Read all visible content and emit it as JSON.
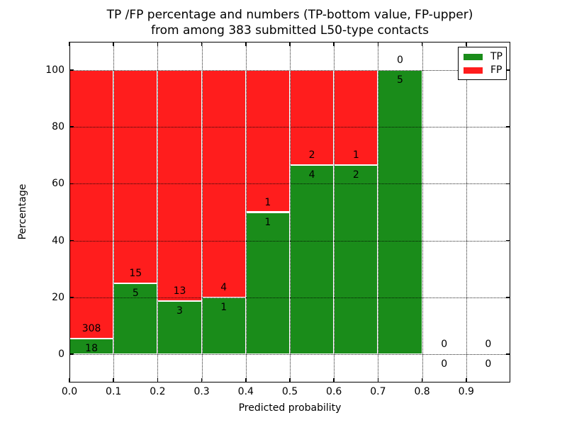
{
  "chart_data": {
    "type": "bar",
    "stacked": true,
    "title_lines": [
      "TP /FP percentage and numbers (TP-bottom value, FP-upper)",
      "from among 383 submitted L50-type contacts"
    ],
    "total_submitted_contacts": 383,
    "xlabel": "Predicted probability",
    "ylabel": "Percentage",
    "xlim": [
      0.0,
      1.0
    ],
    "ylim": [
      -10,
      110
    ],
    "grid": true,
    "xticks": [
      {
        "value": 0.0,
        "label": "0.0"
      },
      {
        "value": 0.1,
        "label": "0.1"
      },
      {
        "value": 0.2,
        "label": "0.2"
      },
      {
        "value": 0.3,
        "label": "0.3"
      },
      {
        "value": 0.4,
        "label": "0.4"
      },
      {
        "value": 0.5,
        "label": "0.5"
      },
      {
        "value": 0.6,
        "label": "0.6"
      },
      {
        "value": 0.7,
        "label": "0.7"
      },
      {
        "value": 0.8,
        "label": "0.8"
      },
      {
        "value": 0.9,
        "label": "0.9"
      }
    ],
    "yticks": [
      {
        "value": 0,
        "label": "0"
      },
      {
        "value": 20,
        "label": "20"
      },
      {
        "value": 40,
        "label": "40"
      },
      {
        "value": 60,
        "label": "60"
      },
      {
        "value": 80,
        "label": "80"
      },
      {
        "value": 100,
        "label": "100"
      }
    ],
    "bins": [
      {
        "x_start": 0.0,
        "x_end": 0.1,
        "tp": 18,
        "fp": 308
      },
      {
        "x_start": 0.1,
        "x_end": 0.2,
        "tp": 5,
        "fp": 15
      },
      {
        "x_start": 0.2,
        "x_end": 0.3,
        "tp": 3,
        "fp": 13
      },
      {
        "x_start": 0.3,
        "x_end": 0.4,
        "tp": 1,
        "fp": 4
      },
      {
        "x_start": 0.4,
        "x_end": 0.5,
        "tp": 1,
        "fp": 1
      },
      {
        "x_start": 0.5,
        "x_end": 0.6,
        "tp": 4,
        "fp": 2
      },
      {
        "x_start": 0.6,
        "x_end": 0.7,
        "tp": 2,
        "fp": 1
      },
      {
        "x_start": 0.7,
        "x_end": 0.8,
        "tp": 5,
        "fp": 0
      },
      {
        "x_start": 0.8,
        "x_end": 0.9,
        "tp": 0,
        "fp": 0
      },
      {
        "x_start": 0.9,
        "x_end": 1.0,
        "tp": 0,
        "fp": 0
      }
    ],
    "legend": {
      "position": "upper right",
      "entries": [
        {
          "label": "TP",
          "color": "#1a8c1a"
        },
        {
          "label": "FP",
          "color": "#ff1d1d"
        }
      ]
    }
  }
}
